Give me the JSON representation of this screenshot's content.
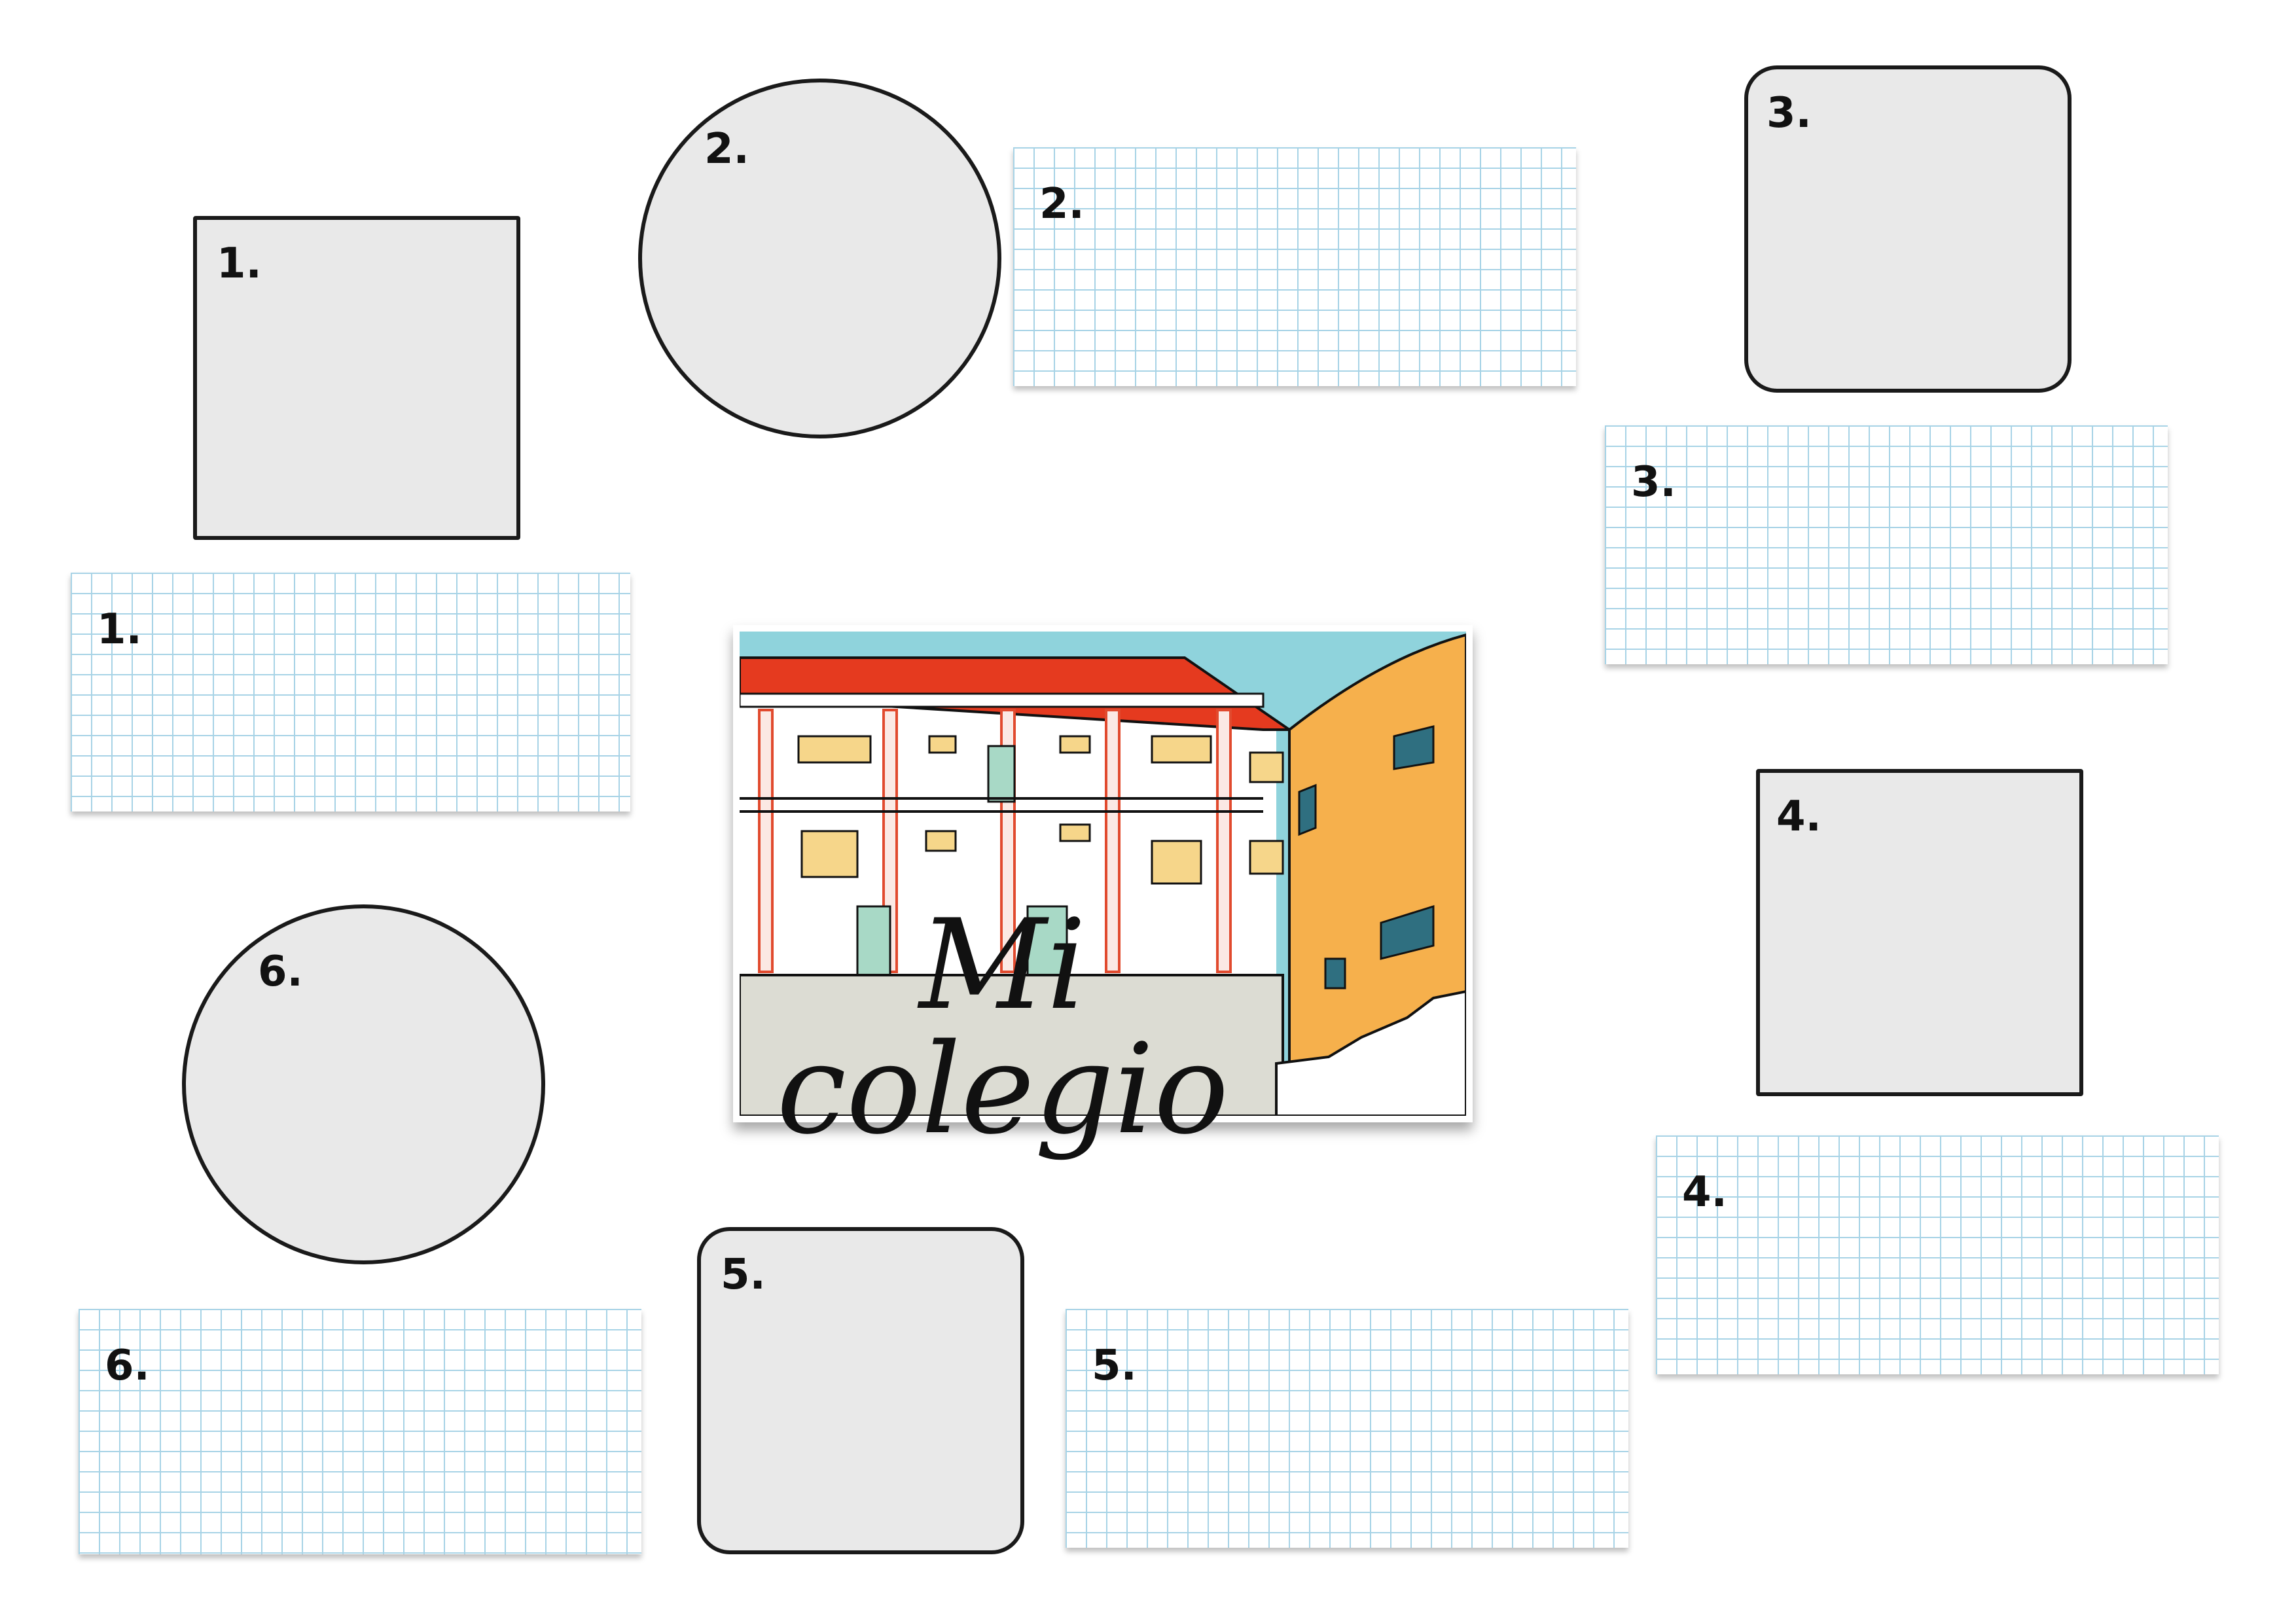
{
  "central_card": {
    "title": "Mi colegio"
  },
  "numbers": {
    "n1": "1.",
    "n2": "2.",
    "n3": "3.",
    "n4": "4.",
    "n5": "5.",
    "n6": "6."
  },
  "colors": {
    "grid_line": "#a7d3e6",
    "frame_fill": "#e9e9e9"
  }
}
